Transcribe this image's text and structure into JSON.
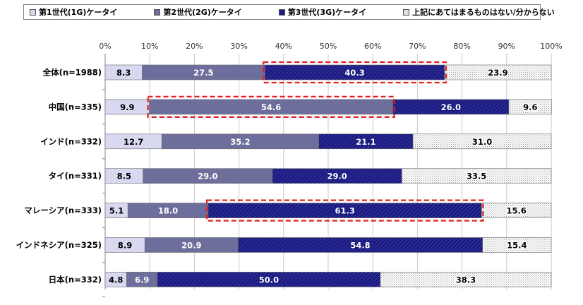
{
  "chart_data": {
    "type": "bar",
    "orientation": "horizontal",
    "stacked": true,
    "percent_axis": true,
    "xlim": [
      0,
      100
    ],
    "x_ticks": [
      "0%",
      "10%",
      "20%",
      "30%",
      "40%",
      "50%",
      "60%",
      "70%",
      "80%",
      "90%",
      "100%"
    ],
    "categories": [
      "全体(n=1988)",
      "中国(n=335)",
      "インド(n=332)",
      "タイ(n=331)",
      "マレーシア(n=333)",
      "インドネシア(n=325)",
      "日本(n=332)"
    ],
    "series": [
      {
        "name": "第1世代(1G)ケータイ",
        "color": "#d8d8f0",
        "pattern": "solid",
        "values": [
          8.3,
          9.9,
          12.7,
          8.5,
          5.1,
          8.9,
          4.8
        ]
      },
      {
        "name": "第2世代(2G)ケータイ",
        "color": "#6e6e9c",
        "pattern": "solid",
        "values": [
          27.5,
          54.6,
          35.2,
          29.0,
          18.0,
          20.9,
          6.9
        ]
      },
      {
        "name": "第3世代(3G)ケータイ",
        "color": "#1a1a80",
        "pattern": "diagonal-hatch",
        "values": [
          40.3,
          26.0,
          21.1,
          29.0,
          61.3,
          54.8,
          50.0
        ]
      },
      {
        "name": "上記にあてはまるものはない/分からない",
        "color": "#e0e0e0",
        "pattern": "dots",
        "values": [
          23.9,
          9.6,
          31.0,
          33.5,
          15.6,
          15.4,
          38.3
        ]
      }
    ],
    "data_labels": [
      [
        "8.3",
        "27.5",
        "40.3",
        "23.9"
      ],
      [
        "9.9",
        "54.6",
        "26.0",
        "9.6"
      ],
      [
        "12.7",
        "35.2",
        "21.1",
        "31.0"
      ],
      [
        "8.5",
        "29.0",
        "29.0",
        "33.5"
      ],
      [
        "5.1",
        "18.0",
        "61.3",
        "15.6"
      ],
      [
        "8.9",
        "20.9",
        "54.8",
        "15.4"
      ],
      [
        "4.8",
        "6.9",
        "50.0",
        "38.3"
      ]
    ],
    "highlights": [
      {
        "category_index": 0,
        "series_index": 2
      },
      {
        "category_index": 1,
        "series_index": 1
      },
      {
        "category_index": 4,
        "series_index": 2
      }
    ],
    "highlight_color": "#e02020",
    "grid": true,
    "legend_position": "top"
  }
}
